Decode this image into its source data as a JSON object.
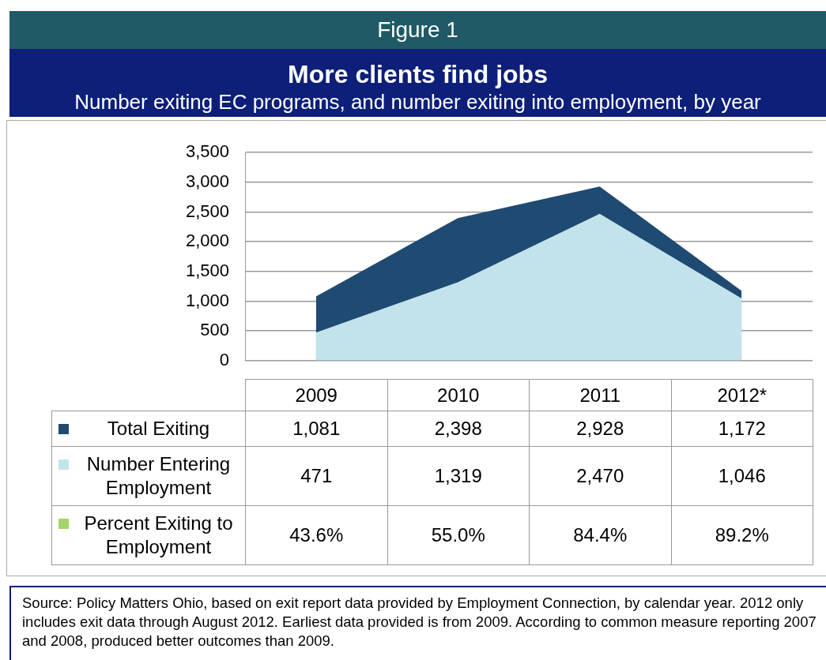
{
  "chart_data": {
    "type": "area",
    "title": "Figure 1",
    "subtitle": "More clients find jobs",
    "annotations": [
      "Number exiting EC programs, and number exiting into employment, by year",
      "Source:  Policy Matters Ohio, based on exit report data provided by Employment Connection, by calendar year. 2012 only includes exit data through August 2012. Earliest data provided is from 2009. According to common measure reporting 2007 and 2008, produced better outcomes than 2009."
    ],
    "categories": [
      "2009",
      "2010",
      "2011",
      "2012*"
    ],
    "series": [
      {
        "name": "Total Exiting",
        "color": "#1f4a72",
        "values": [
          1081,
          2398,
          2928,
          1172
        ],
        "value_labels": [
          "1,081",
          "2,398",
          "2,928",
          "1,172"
        ]
      },
      {
        "name": "Number Entering Employment",
        "color": "#c3e3ec",
        "values": [
          471,
          1319,
          2470,
          1046
        ],
        "value_labels": [
          "471",
          "1,319",
          "2,470",
          "1,046"
        ]
      },
      {
        "name": "Percent Exiting to Employment",
        "color": "#a6d46a",
        "values": [
          null,
          null,
          null,
          null
        ],
        "value_labels": [
          "43.6%",
          "55.0%",
          "84.4%",
          "89.2%"
        ]
      }
    ],
    "ylim": [
      0,
      3500
    ],
    "yticks": [
      {
        "value": 0,
        "label": "0"
      },
      {
        "value": 500,
        "label": "500"
      },
      {
        "value": 1000,
        "label": "1,000"
      },
      {
        "value": 1500,
        "label": "1,500"
      },
      {
        "value": 2000,
        "label": "2,000"
      },
      {
        "value": 2500,
        "label": "2,500"
      },
      {
        "value": 3000,
        "label": "3,000"
      },
      {
        "value": 3500,
        "label": "3,500"
      }
    ],
    "grid": "y",
    "legend": "bottom"
  }
}
